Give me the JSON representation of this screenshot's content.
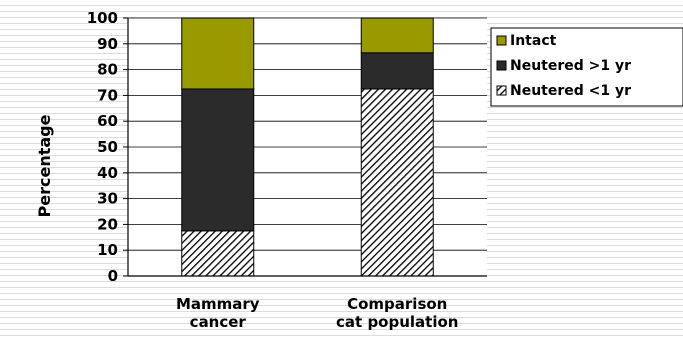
{
  "chart_data": {
    "type": "bar",
    "stacked": true,
    "title": "",
    "xlabel": "",
    "ylabel": "Percentage",
    "ylim": [
      0,
      100
    ],
    "yticks": [
      0,
      10,
      20,
      30,
      40,
      50,
      60,
      70,
      80,
      90,
      100
    ],
    "categories": [
      [
        "Mammary",
        "cancer"
      ],
      [
        "Comparison",
        "cat population"
      ]
    ],
    "series": [
      {
        "name": "Neutered <1 yr",
        "values": [
          17.5,
          72.5
        ],
        "color": "#ffffff",
        "pattern": "diagonal-hatch"
      },
      {
        "name": "Neutered >1 yr",
        "values": [
          55,
          14
        ],
        "color": "#2b2b2b"
      },
      {
        "name": "Intact",
        "values": [
          27.5,
          13.5
        ],
        "color": "#999900"
      }
    ],
    "legend": {
      "position": "top-right",
      "order": [
        "Intact",
        "Neutered >1 yr",
        "Neutered <1 yr"
      ]
    },
    "grid": true
  }
}
